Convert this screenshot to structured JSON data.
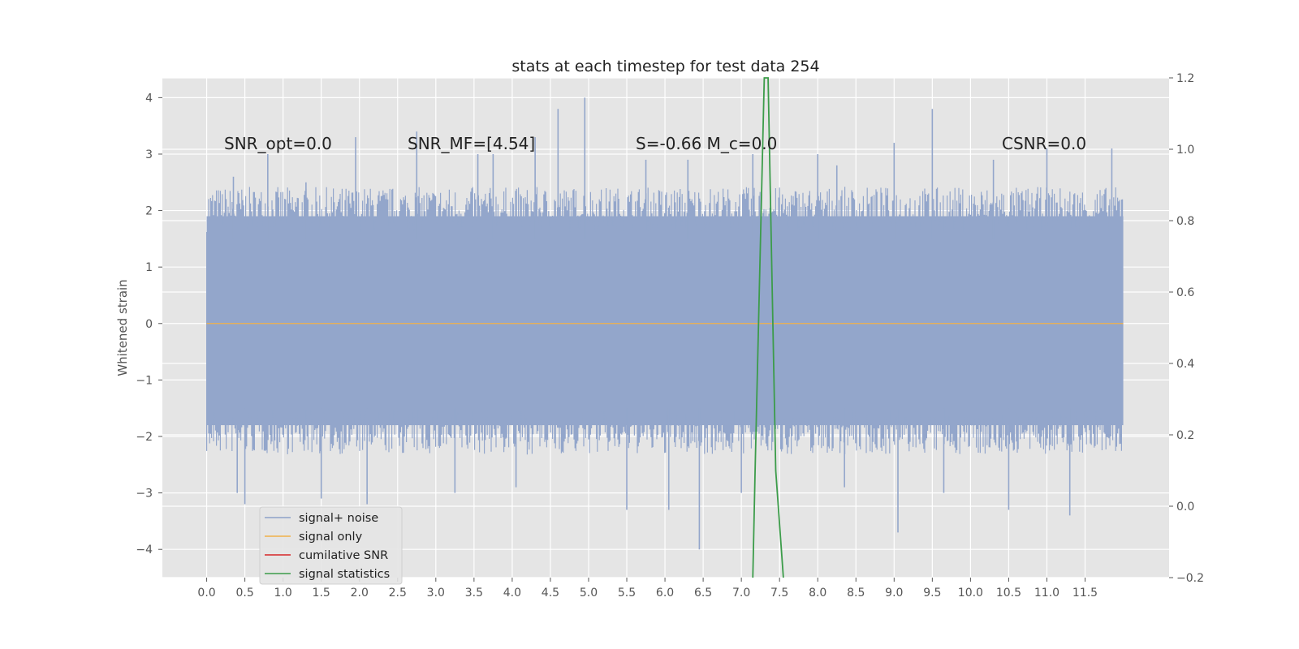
{
  "chart_data": {
    "type": "line",
    "title": "stats at each timestep for test data 254",
    "xlabel": "",
    "ylabel": "Whitened strain",
    "y2label": "",
    "xlim": [
      -0.58,
      12.6
    ],
    "ylim": [
      -4.5,
      4.35
    ],
    "y2lim": [
      -0.2,
      1.2
    ],
    "x_ticks": [
      "0.0",
      "0.5",
      "1.0",
      "1.5",
      "2.0",
      "2.5",
      "3.0",
      "3.5",
      "4.0",
      "4.5",
      "5.0",
      "5.5",
      "6.0",
      "6.5",
      "7.0",
      "7.5",
      "8.0",
      "8.5",
      "9.0",
      "9.5",
      "10.0",
      "10.5",
      "11.0",
      "11.5"
    ],
    "y_ticks": [
      "4",
      "3",
      "2",
      "1",
      "0",
      "−1",
      "−2",
      "−3",
      "−4"
    ],
    "y2_ticks": [
      "1.2",
      "1.0",
      "0.8",
      "0.6",
      "0.4",
      "0.2",
      "0.0",
      "−0.2"
    ],
    "grid": true,
    "legend_position": "lower-left",
    "noise": {
      "x_range": [
        0.0,
        12.0
      ],
      "band": [
        -1.8,
        1.9
      ],
      "spikes_up": [
        [
          0.35,
          2.6
        ],
        [
          0.8,
          3.0
        ],
        [
          1.3,
          2.5
        ],
        [
          1.95,
          3.3
        ],
        [
          2.75,
          3.4
        ],
        [
          3.55,
          3.0
        ],
        [
          3.75,
          3.0
        ],
        [
          4.3,
          3.3
        ],
        [
          4.6,
          3.8
        ],
        [
          4.95,
          4.0
        ],
        [
          5.75,
          2.9
        ],
        [
          6.3,
          2.9
        ],
        [
          7.15,
          3.0
        ],
        [
          8.0,
          3.0
        ],
        [
          8.25,
          2.8
        ],
        [
          9.0,
          3.2
        ],
        [
          9.5,
          3.8
        ],
        [
          10.3,
          2.9
        ],
        [
          11.0,
          3.1
        ],
        [
          11.85,
          3.1
        ]
      ],
      "spikes_down": [
        [
          0.4,
          -3.0
        ],
        [
          0.5,
          -3.2
        ],
        [
          1.5,
          -3.1
        ],
        [
          2.1,
          -3.2
        ],
        [
          3.25,
          -3.0
        ],
        [
          4.05,
          -2.9
        ],
        [
          5.5,
          -3.3
        ],
        [
          6.05,
          -3.3
        ],
        [
          6.45,
          -4.0
        ],
        [
          7.0,
          -3.0
        ],
        [
          8.35,
          -2.9
        ],
        [
          9.05,
          -3.7
        ],
        [
          9.65,
          -3.0
        ],
        [
          10.5,
          -3.3
        ],
        [
          11.3,
          -3.4
        ]
      ]
    },
    "series": [
      {
        "name": "signal+ noise",
        "color": "#8da2c9",
        "x": [
          0.0,
          12.0
        ],
        "y": [
          -1.8,
          1.9
        ]
      },
      {
        "name": "signal only",
        "color": "#f0b24a",
        "x": [
          0.0,
          12.0
        ],
        "y": [
          0.0,
          0.0
        ]
      },
      {
        "name": "cumilative SNR",
        "color": "#d62728",
        "x": [],
        "y": []
      },
      {
        "name": "signal statistics",
        "color": "#3c9c4a",
        "axis": "right",
        "x": [
          7.15,
          7.18,
          7.3,
          7.35,
          7.45,
          7.55
        ],
        "y": [
          -0.2,
          0.1,
          1.2,
          1.2,
          0.1,
          -0.2
        ]
      }
    ],
    "annotations": [
      {
        "key": "snr_opt",
        "text": "SNR_opt=0.0",
        "x": 0.2,
        "y": 3.2
      },
      {
        "key": "snr_mf",
        "text": "SNR_MF=[4.54]",
        "x": 2.6,
        "y": 3.2
      },
      {
        "key": "s_mc",
        "text": "S=-0.66  M_c=0.0",
        "x": 5.6,
        "y": 3.2
      },
      {
        "key": "csnr",
        "text": "CSNR=0.0",
        "x": 10.4,
        "y": 3.2
      }
    ]
  }
}
